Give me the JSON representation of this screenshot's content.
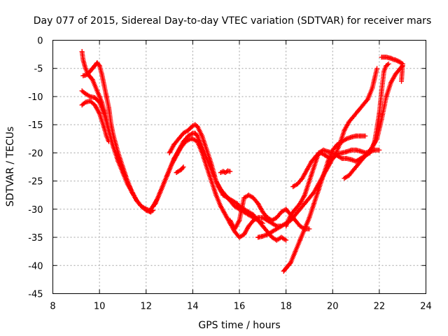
{
  "chart_data": {
    "type": "scatter",
    "title": "Day 077 of 2015, Sidereal Day-to-day VTEC variation (SDTVAR) for receiver mars",
    "xlabel": "GPS time / hours",
    "ylabel": "SDTVAR / TECUs",
    "xlim": [
      8,
      24
    ],
    "ylim": [
      -45,
      0
    ],
    "xticks": [
      8,
      10,
      12,
      14,
      16,
      18,
      20,
      22,
      24
    ],
    "yticks": [
      0,
      -5,
      -10,
      -15,
      -20,
      -25,
      -30,
      -35,
      -40,
      -45
    ],
    "grid": true,
    "marker": "+",
    "color": "#ff0000",
    "series": [
      {
        "x": [
          9.25,
          9.3,
          9.4,
          9.5,
          9.6,
          9.7,
          9.8,
          9.9,
          10.0,
          10.1,
          10.2,
          10.3,
          10.4,
          10.5,
          10.6,
          10.8,
          11.0,
          11.2,
          11.4,
          11.6,
          11.8,
          12.0,
          12.1,
          12.2,
          12.3
        ],
        "y": [
          -2,
          -3.5,
          -5,
          -6,
          -6.5,
          -7,
          -8,
          -9,
          -10,
          -11,
          -12.5,
          -14,
          -16,
          -17.5,
          -19,
          -21,
          -23,
          -25,
          -27,
          -28.5,
          -29.5,
          -30,
          -30.3,
          -30.5,
          -30.2
        ]
      },
      {
        "x": [
          9.3,
          9.4,
          9.5,
          9.6,
          9.7,
          9.8,
          9.9,
          10.0,
          10.1,
          10.2,
          10.3,
          10.4,
          10.5,
          10.6,
          10.8,
          11.0,
          11.2,
          11.4,
          11.6,
          11.8,
          12.0,
          12.2
        ],
        "y": [
          -6.3,
          -6.2,
          -6,
          -5.5,
          -5,
          -4.5,
          -4,
          -4.5,
          -6,
          -8,
          -10,
          -12,
          -15,
          -17,
          -20,
          -22.5,
          -25,
          -27,
          -28.5,
          -29.5,
          -30.2,
          -30.5
        ]
      },
      {
        "x": [
          9.25,
          9.4,
          9.6,
          9.8,
          10.0,
          10.2,
          10.4,
          10.6,
          10.8,
          11.0,
          11.2,
          11.4,
          11.6,
          11.8,
          12.0,
          12.2
        ],
        "y": [
          -9,
          -9.5,
          -10,
          -10.2,
          -11,
          -13,
          -16,
          -19,
          -21.5,
          -23.5,
          -25.5,
          -27,
          -28.5,
          -29.5,
          -30,
          -30.3
        ]
      },
      {
        "x": [
          9.25,
          9.4,
          9.6,
          9.8,
          10.0,
          10.2,
          10.3,
          10.4
        ],
        "y": [
          -11.5,
          -11,
          -10.8,
          -11.5,
          -13,
          -15.5,
          -17,
          -18
        ]
      },
      {
        "x": [
          12.2,
          12.4,
          12.6,
          12.8,
          13.0,
          13.2,
          13.4,
          13.6,
          13.8,
          14.0,
          14.1,
          14.2,
          14.3,
          14.5,
          14.7,
          14.9,
          15.1,
          15.3,
          15.5,
          15.7,
          15.9,
          16.0,
          16.2,
          16.4,
          16.6,
          16.8,
          17.0,
          17.2,
          17.4,
          17.6,
          17.8,
          18.0
        ],
        "y": [
          -30,
          -29,
          -27,
          -25,
          -23,
          -21,
          -19.5,
          -18,
          -17,
          -16.5,
          -16.5,
          -17,
          -18,
          -20,
          -22,
          -24,
          -26,
          -27.5,
          -28,
          -28.5,
          -29,
          -29.5,
          -30,
          -30.5,
          -31,
          -32,
          -33,
          -34,
          -35,
          -35.5,
          -35,
          -35.5
        ]
      },
      {
        "x": [
          12.3,
          12.5,
          12.7,
          12.9,
          13.1,
          13.3,
          13.5,
          13.7,
          13.9,
          14.0,
          14.2,
          14.4,
          14.6,
          14.8,
          15.0,
          15.2,
          15.4,
          15.6,
          15.8,
          16.0,
          16.2,
          16.4,
          16.6,
          16.8,
          17.0,
          17.2,
          17.4,
          17.6,
          17.8
        ],
        "y": [
          -29.5,
          -28,
          -26,
          -24,
          -22,
          -20.5,
          -19,
          -18,
          -17.5,
          -17.5,
          -18,
          -20,
          -22.5,
          -25,
          -27.5,
          -29.5,
          -31,
          -32.5,
          -34,
          -35,
          -34.5,
          -33,
          -32,
          -31.5,
          -31.5,
          -32,
          -32.5,
          -33,
          -33
        ]
      },
      {
        "x": [
          13.0,
          13.2,
          13.4,
          13.6,
          13.8,
          14.0,
          14.1,
          14.2,
          14.4,
          14.6,
          14.8,
          15.0,
          15.2,
          15.4,
          15.6,
          15.8,
          16.0,
          16.2,
          16.4,
          16.6,
          16.8,
          17.0
        ],
        "y": [
          -20,
          -18.5,
          -17.5,
          -16.5,
          -16,
          -15.2,
          -15,
          -15.3,
          -17,
          -19.5,
          -22,
          -25,
          -26.5,
          -27.5,
          -28.5,
          -29.5,
          -30,
          -30.5,
          -31,
          -31.5,
          -32,
          -32.5
        ]
      },
      {
        "x": [
          13.3,
          13.5,
          13.6
        ],
        "y": [
          -23.5,
          -23,
          -22.5
        ]
      },
      {
        "x": [
          15.2,
          15.3,
          15.4,
          15.5,
          15.6
        ],
        "y": [
          -23.5,
          -23.3,
          -23.5,
          -23.2,
          -23.3
        ]
      },
      {
        "x": [
          15.6,
          15.8,
          16.0,
          16.1,
          16.2,
          16.4,
          16.6,
          16.8,
          17.0,
          17.2,
          17.4,
          17.6,
          17.8,
          18.0,
          18.2,
          18.4,
          18.6,
          18.8,
          19.0
        ],
        "y": [
          -32,
          -33.5,
          -32,
          -30,
          -28,
          -27.5,
          -28,
          -29,
          -30.5,
          -31.5,
          -32,
          -31.5,
          -30.5,
          -30,
          -31,
          -32,
          -33,
          -33.5,
          -33.5
        ]
      },
      {
        "x": [
          16.8,
          17.0,
          17.2,
          17.4,
          17.6,
          17.8,
          18.0,
          18.2,
          18.4,
          18.6,
          18.8,
          19.0,
          19.2,
          19.4,
          19.6,
          19.8,
          20.0,
          20.2,
          20.4,
          20.6,
          20.8,
          21.0,
          21.2,
          21.4,
          21.6,
          21.8,
          22.0
        ],
        "y": [
          -35,
          -34.8,
          -34.5,
          -34,
          -33.5,
          -33,
          -32.5,
          -32,
          -31,
          -30,
          -29,
          -28,
          -27,
          -25.5,
          -24,
          -22.5,
          -21,
          -20.2,
          -20,
          -19.8,
          -19.5,
          -19.5,
          -19.7,
          -20,
          -19.8,
          -19.5,
          -19.5
        ]
      },
      {
        "x": [
          17.9,
          18.0,
          18.1,
          18.2,
          18.4,
          18.6,
          18.8,
          19.0,
          19.2,
          19.4,
          19.6,
          19.8,
          20.0,
          20.2,
          20.4,
          20.6,
          20.8,
          21.0,
          21.2,
          21.4
        ],
        "y": [
          -41,
          -40.5,
          -40,
          -39.5,
          -37.5,
          -35.5,
          -33.5,
          -31.5,
          -29,
          -26.5,
          -24,
          -21.5,
          -19.5,
          -18.5,
          -18,
          -17.5,
          -17.2,
          -17,
          -17,
          -17
        ]
      },
      {
        "x": [
          18.3,
          18.5,
          18.7,
          18.9,
          19.1,
          19.3,
          19.5,
          19.7,
          19.9,
          20.1,
          20.3,
          20.5,
          20.7,
          20.9,
          21.1,
          21.3,
          21.5,
          21.7,
          21.9
        ],
        "y": [
          -26,
          -25.5,
          -24.5,
          -23,
          -21.5,
          -20.5,
          -20,
          -20.5,
          -21,
          -20.5,
          -18.5,
          -16,
          -14.5,
          -13.5,
          -12.5,
          -11.5,
          -10.5,
          -8.5,
          -5
        ]
      },
      {
        "x": [
          18.0,
          18.2,
          18.4,
          18.6,
          18.8,
          19.0,
          19.2,
          19.4,
          19.6,
          19.8,
          20.0,
          20.2,
          20.4,
          20.6,
          20.8,
          21.0,
          21.2,
          21.4,
          21.6,
          21.8,
          22.0,
          22.1,
          22.2,
          22.3,
          22.4
        ],
        "y": [
          -33,
          -31,
          -30,
          -29,
          -27.5,
          -25,
          -22.5,
          -20,
          -19.5,
          -19.8,
          -20,
          -20.5,
          -21,
          -21,
          -21.2,
          -21.5,
          -21,
          -20.5,
          -20,
          -18,
          -13,
          -9,
          -5.5,
          -4.5,
          -4.2
        ]
      },
      {
        "x": [
          20.5,
          20.7,
          20.9,
          21.1,
          21.3,
          21.5,
          21.7,
          21.9,
          22.1,
          22.3,
          22.5,
          22.7,
          22.9,
          23.0
        ],
        "y": [
          -24.5,
          -24,
          -23,
          -22,
          -21,
          -20,
          -19,
          -17.5,
          -14,
          -10,
          -7.5,
          -6,
          -5,
          -4.5
        ]
      },
      {
        "x": [
          22.1,
          22.2,
          22.3,
          22.4,
          22.5,
          22.6,
          22.7,
          22.8,
          22.9,
          23.0,
          22.95
        ],
        "y": [
          -3,
          -3,
          -3,
          -3.1,
          -3.2,
          -3.4,
          -3.5,
          -3.7,
          -3.9,
          -4.2,
          -7.3
        ]
      }
    ]
  }
}
